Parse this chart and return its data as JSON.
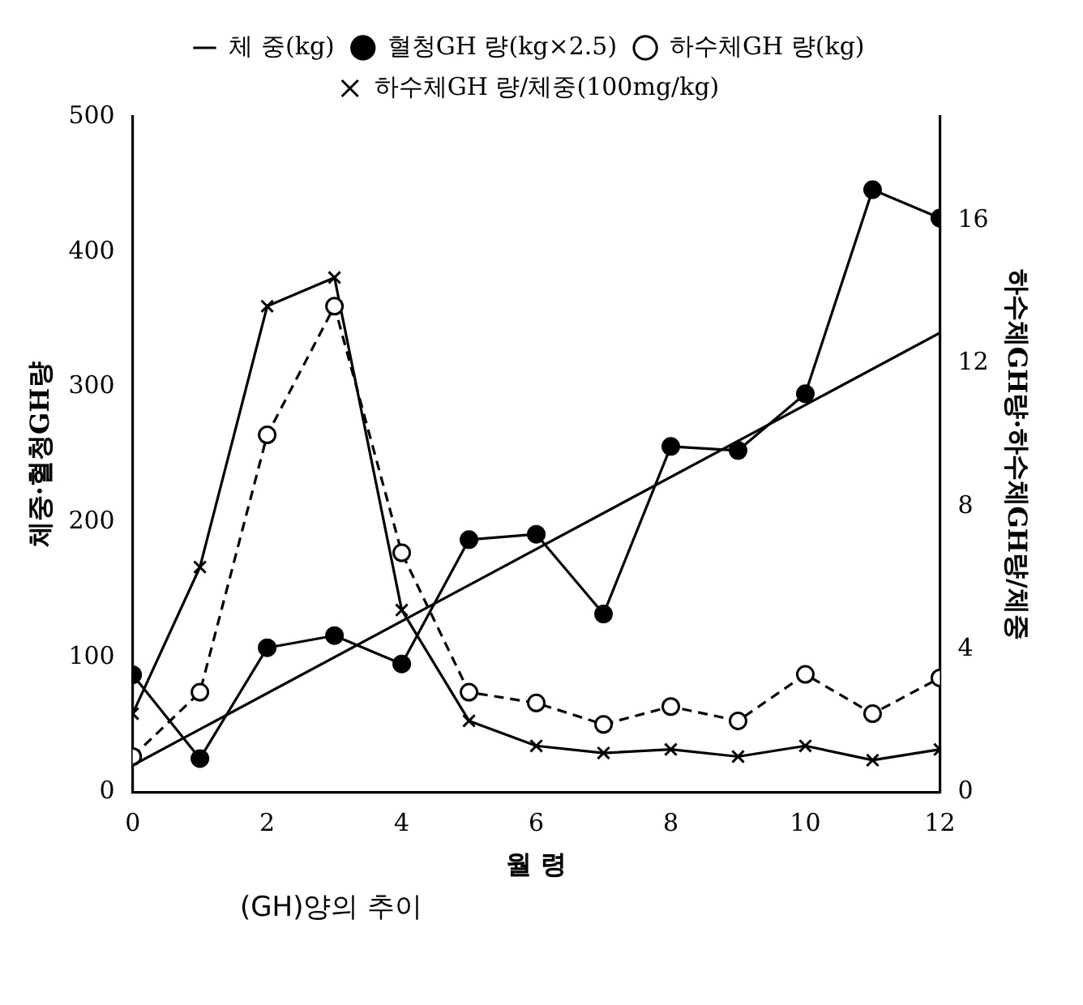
{
  "chart_data": {
    "type": "line",
    "xlabel": "월 령",
    "ylabel": "체중·혈청GH량",
    "y2label": "하수체GH량·하수체GH량/체중",
    "annotations": [
      "(GH)양의 추이"
    ],
    "x": [
      0,
      1,
      2,
      3,
      4,
      5,
      6,
      7,
      8,
      9,
      10,
      11,
      12
    ],
    "series": [
      {
        "name": "체 중(kg)",
        "color": "#000000",
        "x": [
          0,
          12
        ],
        "values": [
          20,
          340
        ],
        "marker": "none",
        "line_style": "solid"
      },
      {
        "name": "혈청GH 량(kg×2.5)",
        "color": "#000000",
        "values": [
          87,
          25,
          107,
          116,
          95,
          187,
          191,
          132,
          256,
          253,
          295,
          446,
          425
        ],
        "marker": "circle",
        "line_style": "solid"
      },
      {
        "name": "하수체GH 량(kg)",
        "color": "#000000",
        "axis": "y2",
        "values": [
          1.0,
          2.8,
          10.0,
          13.6,
          6.7,
          2.8,
          2.5,
          1.9,
          2.4,
          2.0,
          3.3,
          2.2,
          3.2
        ],
        "marker": "circle_open",
        "line_style": "dashed"
      },
      {
        "name": "하수체GH 량/체중(100mg/kg)",
        "color": "#000000",
        "axis": "y2",
        "values": [
          2.2,
          6.3,
          13.6,
          14.4,
          5.1,
          2.0,
          1.3,
          1.1,
          1.2,
          1.0,
          1.3,
          0.9,
          1.2
        ],
        "marker": "cross",
        "line_style": "solid"
      }
    ],
    "xlim": [
      0,
      12
    ],
    "xticks": [
      0,
      2,
      4,
      6,
      8,
      10,
      12
    ],
    "ylim": [
      0,
      500
    ],
    "yticks": [
      0,
      100,
      200,
      300,
      400,
      500
    ],
    "y2lim": [
      0,
      18.9
    ],
    "y2ticks": [
      0,
      4,
      8,
      12,
      16
    ],
    "grid": false,
    "legend": "top"
  }
}
